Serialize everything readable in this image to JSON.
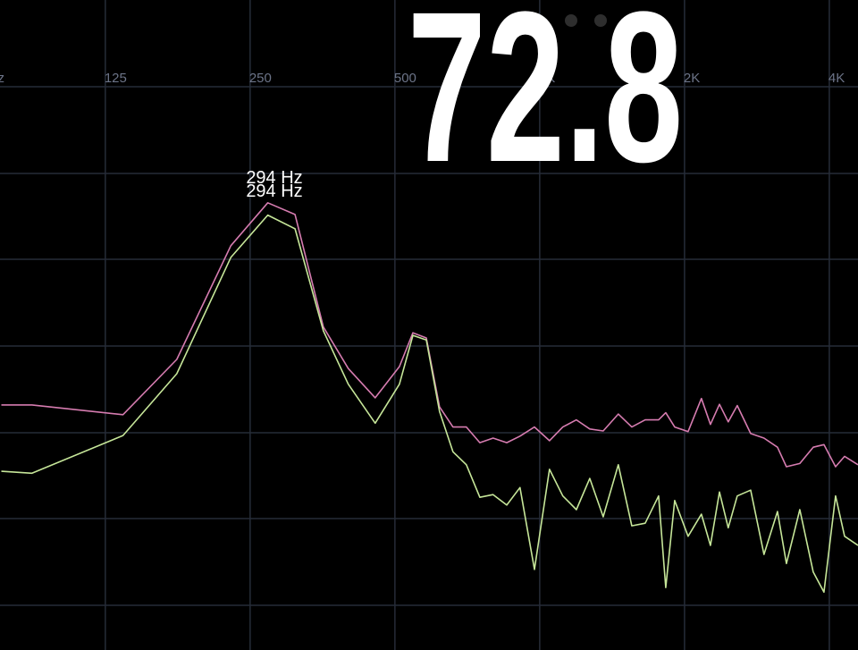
{
  "chart_data": {
    "type": "line",
    "x_scale": "log",
    "reading": "72.8",
    "annotations": [
      "294 Hz",
      "294 Hz"
    ],
    "xlim": [
      75.5,
      4589
    ],
    "ylim": [
      0,
      100
    ],
    "xticks": [
      {
        "value": 62.5,
        "label": "Hz"
      },
      125,
      250,
      500,
      {
        "value": 1000,
        "label": "1K"
      },
      {
        "value": 2000,
        "label": "2K"
      },
      {
        "value": 4000,
        "label": "4K"
      }
    ],
    "grid": true,
    "x": [
      76,
      88,
      136,
      176,
      228,
      272,
      310,
      355,
      400,
      455,
      511,
      545,
      581,
      619,
      660,
      704,
      751,
      800,
      854,
      910,
      975,
      1048,
      1117,
      1192,
      1271,
      1355,
      1457,
      1554,
      1657,
      1767,
      1828,
      1908,
      2035,
      2169,
      2264,
      2364,
      2466,
      2574,
      2745,
      2926,
      3121,
      3258,
      3473,
      3704,
      3899,
      4121,
      4303,
      4589
    ],
    "series": [
      {
        "color": "#d67cb0",
        "values": [
          37.7,
          37.7,
          36.2,
          44.7,
          62.2,
          68.8,
          67.0,
          49.7,
          43.3,
          38.8,
          43.6,
          48.8,
          48.0,
          37.4,
          34.3,
          34.3,
          31.9,
          32.6,
          31.9,
          32.9,
          34.3,
          32.2,
          34.3,
          35.4,
          34.0,
          33.7,
          36.3,
          34.3,
          35.4,
          35.4,
          36.5,
          34.3,
          33.6,
          38.7,
          34.7,
          37.8,
          35.1,
          37.6,
          33.3,
          32.6,
          31.2,
          28.2,
          28.7,
          31.2,
          31.6,
          28.2,
          29.8,
          28.5
        ]
      },
      {
        "color": "#c6e699",
        "values": [
          27.5,
          27.2,
          33.0,
          42.5,
          60.4,
          66.9,
          64.8,
          49.1,
          40.9,
          34.9,
          40.9,
          48.4,
          47.7,
          36.7,
          30.5,
          28.5,
          23.5,
          23.9,
          22.3,
          25.0,
          12.4,
          27.8,
          23.7,
          21.6,
          26.4,
          20.5,
          28.5,
          19.1,
          19.5,
          23.7,
          9.6,
          23.0,
          17.5,
          20.9,
          16.1,
          24.3,
          18.8,
          23.7,
          24.6,
          14.7,
          21.3,
          13.3,
          21.6,
          12.0,
          8.9,
          23.7,
          17.5,
          16.1
        ]
      }
    ]
  }
}
